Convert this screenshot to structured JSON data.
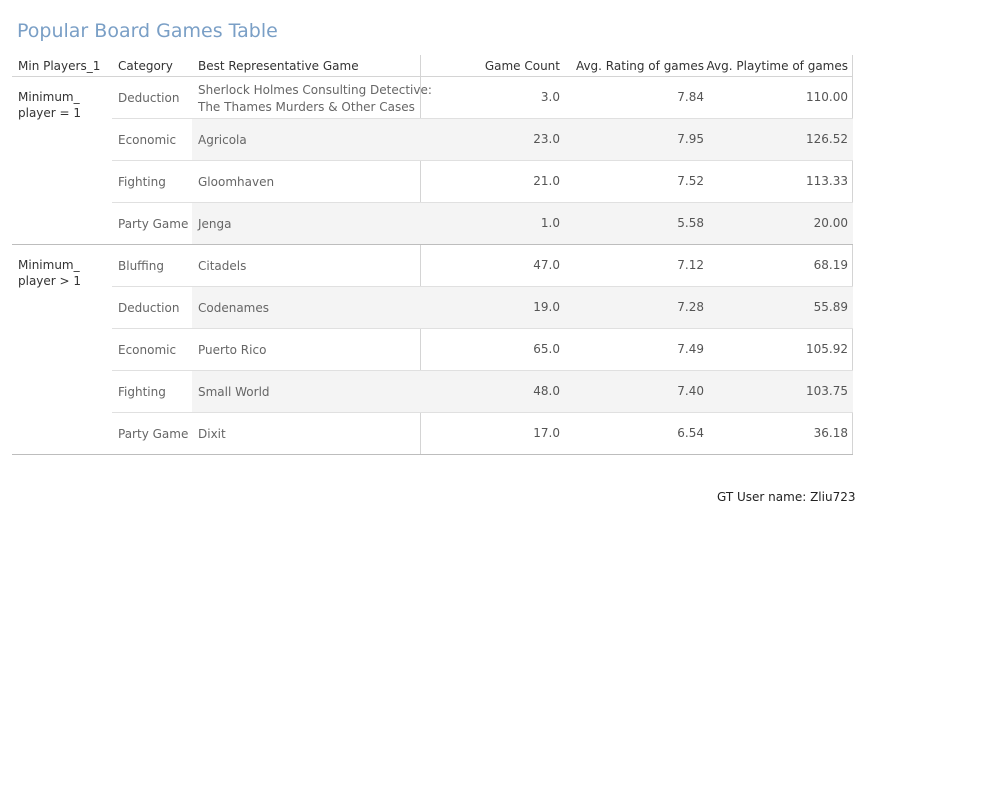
{
  "title": "Popular Board Games Table",
  "headers": {
    "min_players": "Min Players_1",
    "category": "Category",
    "game": "Best Representative  Game",
    "count": "Game Count",
    "rating": "Avg. Rating of games",
    "playtime": "Avg. Playtime of games"
  },
  "groups": [
    {
      "label": "Minimum_ player = 1",
      "rows": [
        {
          "category": "Deduction",
          "game": "Sherlock Holmes Consulting Detective:",
          "game_line2": "The Thames Murders & Other Cases",
          "count": "3.0",
          "rating": "7.84",
          "playtime": "110.00"
        },
        {
          "category": "Economic",
          "game": "Agricola",
          "count": "23.0",
          "rating": "7.95",
          "playtime": "126.52"
        },
        {
          "category": "Fighting",
          "game": "Gloomhaven",
          "count": "21.0",
          "rating": "7.52",
          "playtime": "113.33"
        },
        {
          "category": "Party Game",
          "game": "Jenga",
          "count": "1.0",
          "rating": "5.58",
          "playtime": "20.00"
        }
      ]
    },
    {
      "label": "Minimum_ player > 1",
      "rows": [
        {
          "category": "Bluffing",
          "game": "Citadels",
          "count": "47.0",
          "rating": "7.12",
          "playtime": "68.19"
        },
        {
          "category": "Deduction",
          "game": "Codenames",
          "count": "19.0",
          "rating": "7.28",
          "playtime": "55.89"
        },
        {
          "category": "Economic",
          "game": "Puerto Rico",
          "count": "65.0",
          "rating": "7.49",
          "playtime": "105.92"
        },
        {
          "category": "Fighting",
          "game": "Small World",
          "count": "48.0",
          "rating": "7.40",
          "playtime": "103.75"
        },
        {
          "category": "Party Game",
          "game": "Dixit",
          "count": "17.0",
          "rating": "6.54",
          "playtime": "36.18"
        }
      ]
    }
  ],
  "footer": "GT User name: Zliu723",
  "chart_data": {
    "type": "table",
    "title": "Popular Board Games Table",
    "columns": [
      "Min Players_1",
      "Category",
      "Best Representative  Game",
      "Game Count",
      "Avg. Rating of games",
      "Avg. Playtime of games"
    ],
    "rows": [
      [
        "Minimum_ player = 1",
        "Deduction",
        "Sherlock Holmes Consulting Detective: The Thames Murders & Other Cases",
        3.0,
        7.84,
        110.0
      ],
      [
        "Minimum_ player = 1",
        "Economic",
        "Agricola",
        23.0,
        7.95,
        126.52
      ],
      [
        "Minimum_ player = 1",
        "Fighting",
        "Gloomhaven",
        21.0,
        7.52,
        113.33
      ],
      [
        "Minimum_ player = 1",
        "Party Game",
        "Jenga",
        1.0,
        5.58,
        20.0
      ],
      [
        "Minimum_ player > 1",
        "Bluffing",
        "Citadels",
        47.0,
        7.12,
        68.19
      ],
      [
        "Minimum_ player > 1",
        "Deduction",
        "Codenames",
        19.0,
        7.28,
        55.89
      ],
      [
        "Minimum_ player > 1",
        "Economic",
        "Puerto Rico",
        65.0,
        7.49,
        105.92
      ],
      [
        "Minimum_ player > 1",
        "Fighting",
        "Small World",
        48.0,
        7.4,
        103.75
      ],
      [
        "Minimum_ player > 1",
        "Party Game",
        "Dixit",
        17.0,
        6.54,
        36.18
      ]
    ]
  }
}
